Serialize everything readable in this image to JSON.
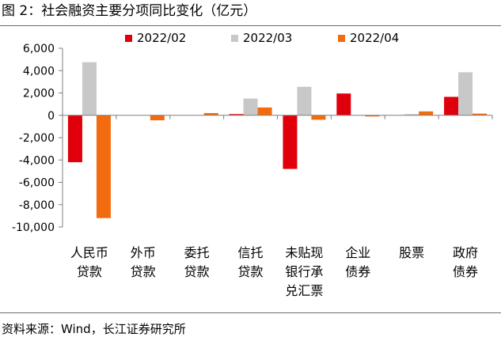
{
  "title": "图 2：社会融资主要分项同比变化（亿元）",
  "source": "资料来源：Wind，长江证券研究所",
  "chart_data": {
    "type": "bar",
    "title": "社会融资主要分项同比变化（亿元）",
    "xlabel": "",
    "ylabel": "",
    "ylim": [
      -10000,
      6000
    ],
    "yticks": [
      6000,
      4000,
      2000,
      0,
      -2000,
      -4000,
      -6000,
      -8000,
      -10000
    ],
    "ytick_labels": [
      "6,000",
      "4,000",
      "2,000",
      "0",
      "-2,000",
      "-4,000",
      "-6,000",
      "-8,000",
      "-10,000"
    ],
    "legend_position": "top",
    "grid": false,
    "categories": [
      [
        "人民币",
        "贷款"
      ],
      [
        "外币",
        "贷款"
      ],
      [
        "委托",
        "贷款"
      ],
      [
        "信托",
        "贷款"
      ],
      [
        "未贴现",
        "银行承",
        "兑汇票"
      ],
      [
        "企业",
        "债券"
      ],
      [
        "股票"
      ],
      [
        "政府",
        "债券"
      ]
    ],
    "series": [
      {
        "name": "2022/02",
        "color": "#e0000b",
        "values": [
          -4200,
          0,
          0,
          100,
          -4800,
          1950,
          0,
          1650
        ]
      },
      {
        "name": "2022/03",
        "color": "#c8c8c8",
        "values": [
          4750,
          0,
          0,
          1500,
          2550,
          0,
          50,
          3850
        ]
      },
      {
        "name": "2022/04",
        "color": "#f26b0f",
        "values": [
          -9200,
          -450,
          200,
          700,
          -400,
          -100,
          350,
          150
        ]
      }
    ]
  }
}
